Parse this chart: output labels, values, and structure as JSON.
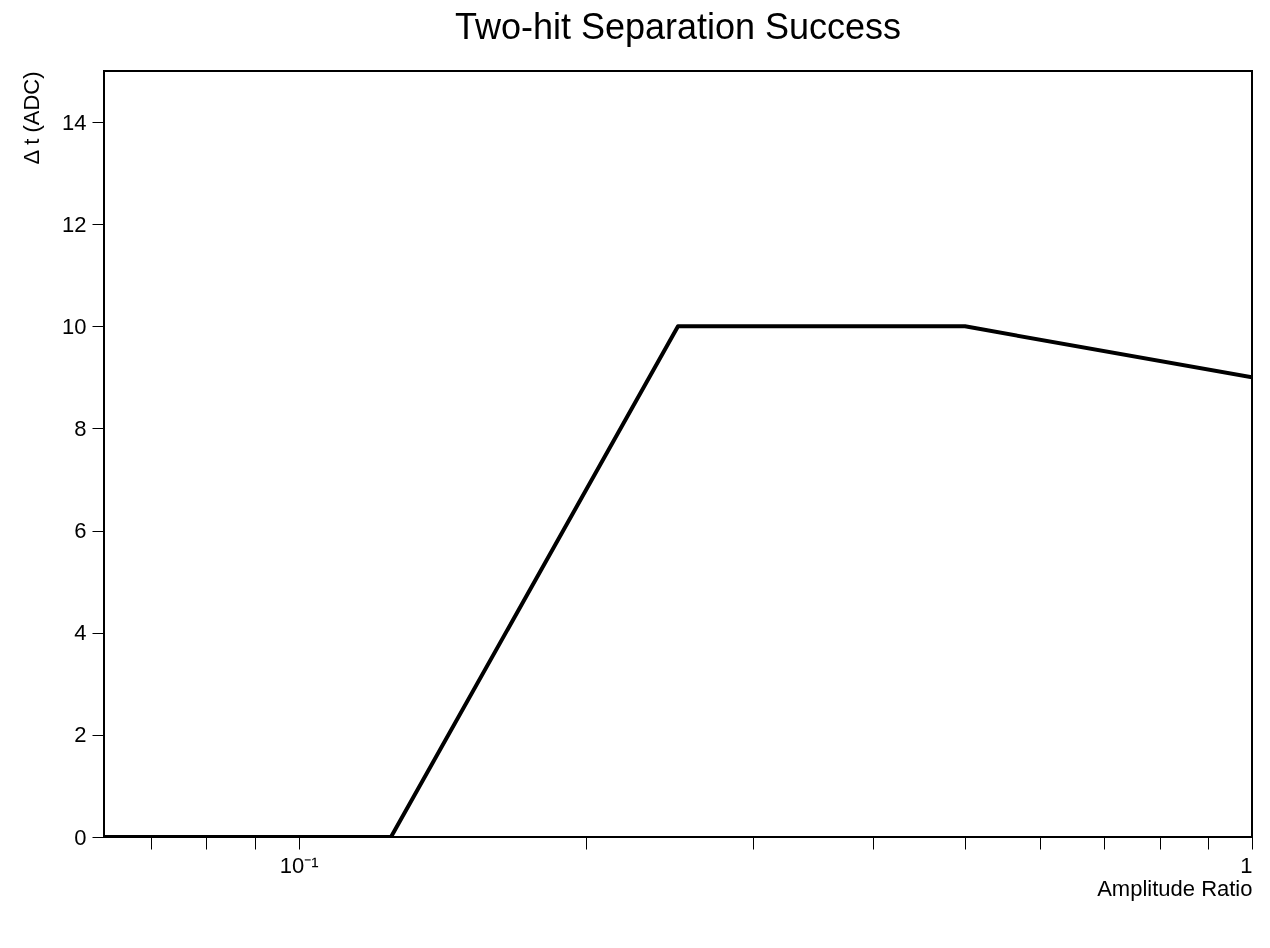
{
  "chart_data": {
    "type": "line",
    "title": "Two-hit Separation Success",
    "xlabel": "Amplitude Ratio",
    "ylabel": "Δ t (ADC)",
    "log": "x",
    "x": [
      0.0625,
      0.125,
      0.25,
      0.5,
      1
    ],
    "series": [
      {
        "color": "#000000",
        "values": [
          0,
          0,
          10,
          10,
          9
        ]
      }
    ],
    "xlim": [
      0.0625,
      1
    ],
    "xticks": [
      {
        "value": 0.07,
        "label": null
      },
      {
        "value": 0.08,
        "label": null
      },
      {
        "value": 0.09,
        "label": null
      },
      {
        "value": 0.1,
        "label": "10⁻¹"
      },
      {
        "value": 0.2,
        "label": null
      },
      {
        "value": 0.3,
        "label": null
      },
      {
        "value": 0.4,
        "label": null
      },
      {
        "value": 0.5,
        "label": null
      },
      {
        "value": 0.6,
        "label": null
      },
      {
        "value": 0.7,
        "label": null
      },
      {
        "value": 0.8,
        "label": null
      },
      {
        "value": 0.9,
        "label": null
      },
      1
    ],
    "ylim": [
      0,
      15
    ],
    "yticks": [
      0,
      2,
      4,
      6,
      8,
      10,
      12,
      14
    ],
    "grid": false,
    "marker": "none",
    "line_style": "solid"
  }
}
